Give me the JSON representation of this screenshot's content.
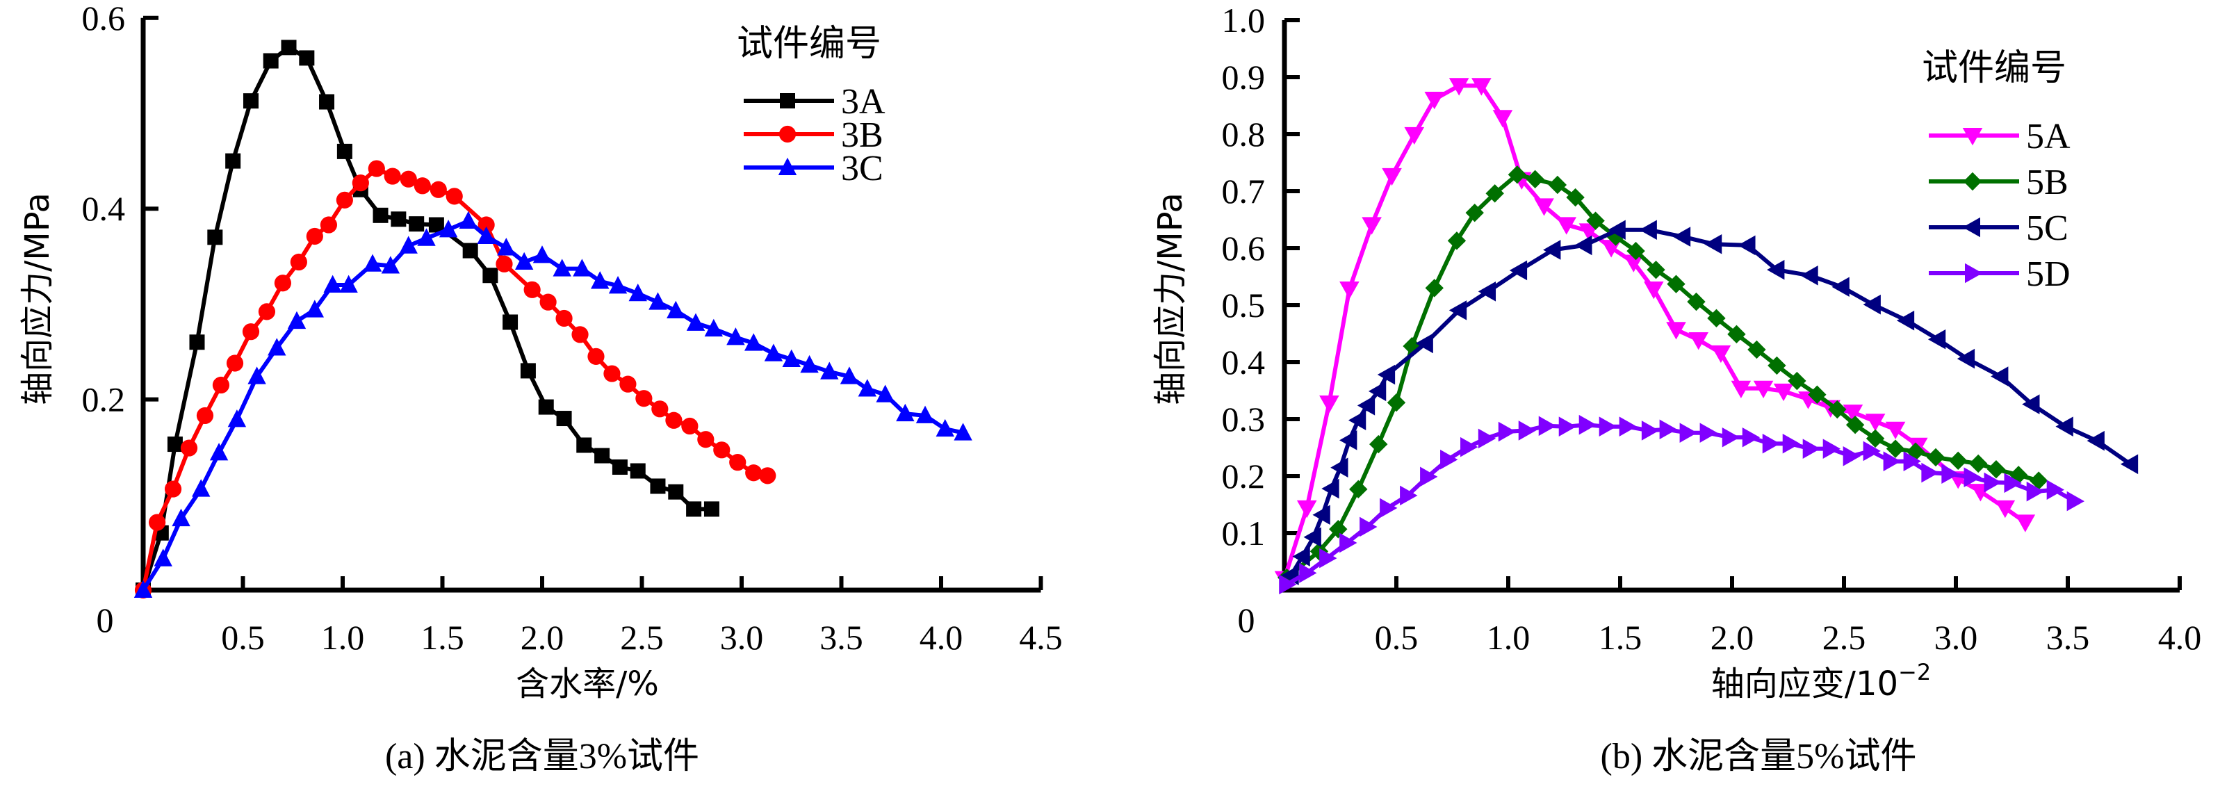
{
  "chart_data": [
    {
      "id": "a",
      "type": "line",
      "title": "",
      "caption": "(a) 水泥含量3%试件",
      "xlabel": "含水率/%",
      "ylabel": "轴向应力/MPa",
      "xlim": [
        0,
        4.5
      ],
      "ylim": [
        0,
        0.6
      ],
      "xticks": [
        0.5,
        1.0,
        1.5,
        2.0,
        2.5,
        3.0,
        3.5,
        4.0,
        4.5
      ],
      "xtick_labels": [
        "0.5",
        "1.0",
        "1.5",
        "2.0",
        "2.5",
        "3.0",
        "3.5",
        "4.0",
        "4.5"
      ],
      "yticks": [
        0.2,
        0.4,
        0.6
      ],
      "ytick_labels": [
        "0.2",
        "0.4",
        "0.6"
      ],
      "origin_label": "0",
      "grid": false,
      "legend": {
        "title": "试件编号",
        "position": "top-right"
      },
      "series": [
        {
          "name": "3A",
          "color": "#000000",
          "marker": "square",
          "x": [
            0,
            0.09,
            0.16,
            0.27,
            0.36,
            0.45,
            0.54,
            0.64,
            0.73,
            0.82,
            0.92,
            1.01,
            1.09,
            1.19,
            1.28,
            1.37,
            1.47,
            1.64,
            1.74,
            1.84,
            1.93,
            2.02,
            2.11,
            2.21,
            2.3,
            2.39,
            2.48,
            2.58,
            2.67,
            2.76,
            2.85
          ],
          "y": [
            0,
            0.06,
            0.153,
            0.26,
            0.37,
            0.45,
            0.513,
            0.555,
            0.569,
            0.558,
            0.512,
            0.46,
            0.42,
            0.393,
            0.389,
            0.384,
            0.383,
            0.356,
            0.33,
            0.281,
            0.23,
            0.192,
            0.18,
            0.152,
            0.141,
            0.129,
            0.125,
            0.109,
            0.103,
            0.085,
            0.085
          ]
        },
        {
          "name": "3B",
          "color": "#ff0000",
          "marker": "circle",
          "x": [
            0,
            0.07,
            0.15,
            0.23,
            0.31,
            0.39,
            0.46,
            0.54,
            0.62,
            0.7,
            0.78,
            0.86,
            0.93,
            1.01,
            1.09,
            1.17,
            1.25,
            1.33,
            1.4,
            1.48,
            1.56,
            1.72,
            1.81,
            1.95,
            2.03,
            2.11,
            2.19,
            2.27,
            2.35,
            2.43,
            2.51,
            2.59,
            2.66,
            2.74,
            2.82,
            2.9,
            2.98,
            3.06,
            3.13
          ],
          "y": [
            0,
            0.071,
            0.106,
            0.149,
            0.183,
            0.215,
            0.238,
            0.271,
            0.292,
            0.322,
            0.344,
            0.371,
            0.383,
            0.409,
            0.427,
            0.442,
            0.434,
            0.431,
            0.424,
            0.42,
            0.413,
            0.383,
            0.342,
            0.315,
            0.302,
            0.285,
            0.268,
            0.245,
            0.227,
            0.216,
            0.201,
            0.19,
            0.178,
            0.172,
            0.158,
            0.147,
            0.134,
            0.123,
            0.12
          ]
        },
        {
          "name": "3C",
          "color": "#0000ff",
          "marker": "triangle-up",
          "x": [
            0,
            0.1,
            0.19,
            0.29,
            0.38,
            0.47,
            0.57,
            0.67,
            0.77,
            0.86,
            0.95,
            1.03,
            1.15,
            1.24,
            1.33,
            1.42,
            1.53,
            1.63,
            1.72,
            1.82,
            1.91,
            2.0,
            2.1,
            2.2,
            2.29,
            2.38,
            2.48,
            2.58,
            2.67,
            2.77,
            2.86,
            2.97,
            3.06,
            3.16,
            3.25,
            3.34,
            3.44,
            3.54,
            3.63,
            3.72,
            3.82,
            3.92,
            4.02,
            4.11
          ],
          "y": [
            0,
            0.033,
            0.075,
            0.106,
            0.144,
            0.179,
            0.224,
            0.254,
            0.282,
            0.294,
            0.32,
            0.32,
            0.342,
            0.34,
            0.361,
            0.369,
            0.378,
            0.387,
            0.371,
            0.359,
            0.344,
            0.351,
            0.337,
            0.337,
            0.324,
            0.319,
            0.311,
            0.302,
            0.293,
            0.28,
            0.274,
            0.265,
            0.259,
            0.248,
            0.242,
            0.236,
            0.229,
            0.224,
            0.211,
            0.205,
            0.185,
            0.183,
            0.169,
            0.165
          ]
        }
      ]
    },
    {
      "id": "b",
      "type": "line",
      "title": "",
      "caption": "(b) 水泥含量5%试件",
      "xlabel": "轴向应变/10",
      "xlabel_superscript": "−2",
      "ylabel": "轴向应力/MPa",
      "xlim": [
        0,
        4.0
      ],
      "ylim": [
        0,
        1.0
      ],
      "xticks": [
        0.5,
        1.0,
        1.5,
        2.0,
        2.5,
        3.0,
        3.5,
        4.0
      ],
      "xtick_labels": [
        "0.5",
        "1.0",
        "1.5",
        "2.0",
        "2.5",
        "3.0",
        "3.5",
        "4.0"
      ],
      "yticks": [
        0.1,
        0.2,
        0.3,
        0.4,
        0.5,
        0.6,
        0.7,
        0.8,
        0.9,
        1.0
      ],
      "ytick_labels": [
        "0.1",
        "0.2",
        "0.3",
        "0.4",
        "0.5",
        "0.6",
        "0.7",
        "0.8",
        "0.9",
        "1.0"
      ],
      "origin_label": "0",
      "grid": false,
      "legend": {
        "title": "试件编号",
        "position": "top-right"
      },
      "series": [
        {
          "name": "5A",
          "color": "#ff00ff",
          "marker": "triangle-down",
          "x": [
            0,
            0.1,
            0.2,
            0.29,
            0.39,
            0.48,
            0.58,
            0.67,
            0.78,
            0.88,
            0.975,
            1.06,
            1.16,
            1.26,
            1.36,
            1.46,
            1.56,
            1.65,
            1.75,
            1.85,
            1.95,
            2.04,
            2.14,
            2.23,
            2.34,
            2.44,
            2.54,
            2.64,
            2.73,
            2.83,
            3.01,
            3.11,
            3.22,
            3.31
          ],
          "y": [
            0.02,
            0.144,
            0.328,
            0.528,
            0.641,
            0.727,
            0.799,
            0.861,
            0.885,
            0.885,
            0.829,
            0.72,
            0.674,
            0.641,
            0.63,
            0.601,
            0.575,
            0.528,
            0.457,
            0.439,
            0.416,
            0.354,
            0.354,
            0.349,
            0.335,
            0.32,
            0.312,
            0.296,
            0.282,
            0.254,
            0.195,
            0.173,
            0.144,
            0.119
          ]
        },
        {
          "name": "5B",
          "color": "#007000",
          "marker": "diamond",
          "x": [
            0.01,
            0.155,
            0.24,
            0.33,
            0.42,
            0.5,
            0.57,
            0.67,
            0.77,
            0.85,
            0.94,
            1.04,
            1.12,
            1.22,
            1.3,
            1.39,
            1.48,
            1.57,
            1.66,
            1.75,
            1.84,
            1.93,
            2.02,
            2.11,
            2.2,
            2.29,
            2.38,
            2.47,
            2.55,
            2.64,
            2.73,
            2.82,
            2.91,
            3.01,
            3.1,
            3.18,
            3.28,
            3.37
          ],
          "y": [
            0.022,
            0.068,
            0.107,
            0.177,
            0.256,
            0.329,
            0.428,
            0.53,
            0.613,
            0.662,
            0.696,
            0.729,
            0.721,
            0.711,
            0.689,
            0.648,
            0.62,
            0.595,
            0.562,
            0.537,
            0.506,
            0.477,
            0.449,
            0.422,
            0.394,
            0.367,
            0.343,
            0.317,
            0.29,
            0.266,
            0.248,
            0.243,
            0.233,
            0.227,
            0.222,
            0.212,
            0.202,
            0.192
          ]
        },
        {
          "name": "5C",
          "color": "#000080",
          "marker": "triangle-left",
          "x": [
            0.03,
            0.08,
            0.13,
            0.17,
            0.21,
            0.25,
            0.29,
            0.33,
            0.37,
            0.42,
            0.46,
            0.63,
            0.78,
            0.91,
            1.05,
            1.2,
            1.34,
            1.49,
            1.63,
            1.78,
            1.92,
            2.07,
            2.2,
            2.35,
            2.49,
            2.63,
            2.78,
            2.92,
            3.05,
            3.2,
            3.34,
            3.49,
            3.63,
            3.78
          ],
          "y": [
            0.026,
            0.059,
            0.093,
            0.132,
            0.178,
            0.215,
            0.263,
            0.298,
            0.324,
            0.349,
            0.378,
            0.433,
            0.491,
            0.524,
            0.561,
            0.597,
            0.605,
            0.632,
            0.632,
            0.62,
            0.607,
            0.605,
            0.562,
            0.552,
            0.532,
            0.501,
            0.473,
            0.44,
            0.406,
            0.375,
            0.326,
            0.287,
            0.262,
            0.221
          ]
        },
        {
          "name": "5D",
          "color": "#8000ff",
          "marker": "triangle-right",
          "x": [
            0.01,
            0.1,
            0.19,
            0.28,
            0.37,
            0.46,
            0.55,
            0.64,
            0.73,
            0.82,
            0.9,
            0.99,
            1.08,
            1.17,
            1.26,
            1.35,
            1.44,
            1.53,
            1.63,
            1.71,
            1.8,
            1.89,
            1.99,
            2.08,
            2.17,
            2.26,
            2.35,
            2.44,
            2.53,
            2.62,
            2.71,
            2.8,
            2.88,
            2.97,
            3.07,
            3.16,
            3.25,
            3.35,
            3.44,
            3.53
          ],
          "y": [
            0.01,
            0.03,
            0.056,
            0.083,
            0.111,
            0.144,
            0.166,
            0.199,
            0.229,
            0.251,
            0.266,
            0.278,
            0.28,
            0.288,
            0.287,
            0.29,
            0.287,
            0.287,
            0.28,
            0.282,
            0.276,
            0.276,
            0.268,
            0.268,
            0.257,
            0.257,
            0.248,
            0.248,
            0.235,
            0.244,
            0.226,
            0.226,
            0.206,
            0.204,
            0.198,
            0.189,
            0.188,
            0.173,
            0.176,
            0.156
          ]
        }
      ]
    }
  ]
}
